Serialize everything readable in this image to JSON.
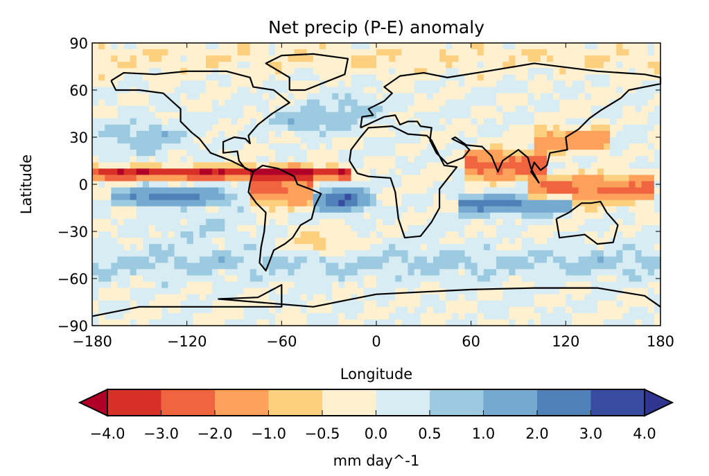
{
  "chart_data": {
    "type": "heatmap",
    "title": "Net precip (P-E) anomaly",
    "xlabel": "Longitude",
    "ylabel": "Latitude",
    "xlim": [
      -180,
      180
    ],
    "ylim": [
      -90,
      90
    ],
    "xticks": [
      "−180",
      "−120",
      "−60",
      "0",
      "60",
      "120",
      "180"
    ],
    "xtick_values": [
      -180,
      -120,
      -60,
      0,
      60,
      120,
      180
    ],
    "yticks": [
      "90",
      "60",
      "30",
      "0",
      "−30",
      "−60",
      "−90"
    ],
    "ytick_values": [
      90,
      60,
      30,
      0,
      -30,
      -60,
      -90
    ],
    "projection": "plate carree with coastlines",
    "colorbar": {
      "label": "mm day^-1",
      "levels": [
        -4.0,
        -3.0,
        -2.0,
        -1.0,
        -0.5,
        0.0,
        0.5,
        1.0,
        2.0,
        3.0,
        4.0
      ],
      "tick_labels": [
        "−4.0",
        "−3.0",
        "−2.0",
        "−1.0",
        "−0.5",
        "0.0",
        "0.5",
        "1.0",
        "2.0",
        "3.0",
        "4.0"
      ],
      "colors": [
        "#d73027",
        "#f06440",
        "#fca05a",
        "#fdd080",
        "#fff0d0",
        "#d8ecf4",
        "#9ccae0",
        "#74a9d0",
        "#5080b8",
        "#384ca0"
      ],
      "extend_low_color": "#b00028",
      "extend_high_color": "#303590",
      "extend": "both",
      "orientation": "horizontal"
    }
  }
}
